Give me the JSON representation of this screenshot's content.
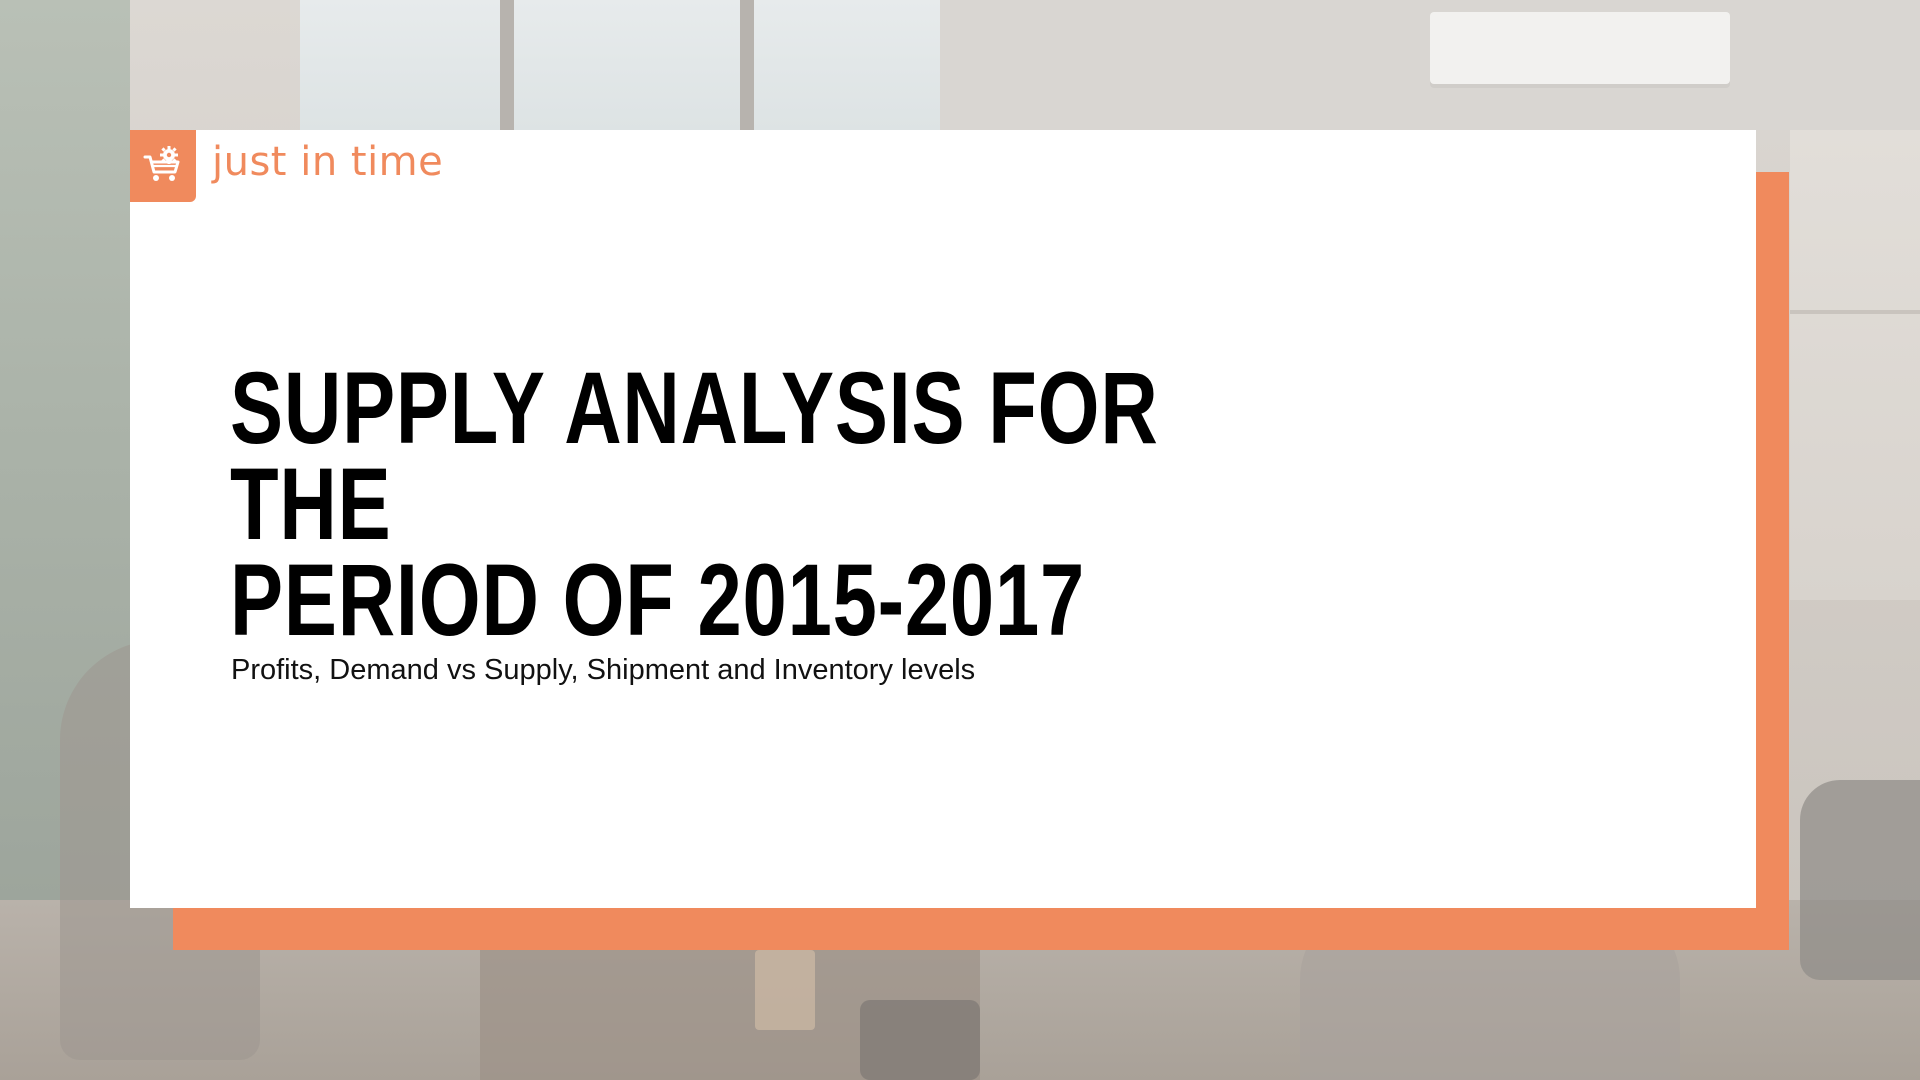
{
  "brand": {
    "name": "just in time",
    "accent_color": "#f08a5d",
    "logo_icon": "shopping-cart-gear-icon"
  },
  "slide": {
    "title_line1": "SUPPLY ANALYSIS FOR THE",
    "title_line2": "PERIOD OF 2015-2017",
    "subtitle": "Profits, Demand vs Supply, Shipment and Inventory levels",
    "card_color": "#ffffff",
    "background_image": "office-meeting-photo"
  }
}
